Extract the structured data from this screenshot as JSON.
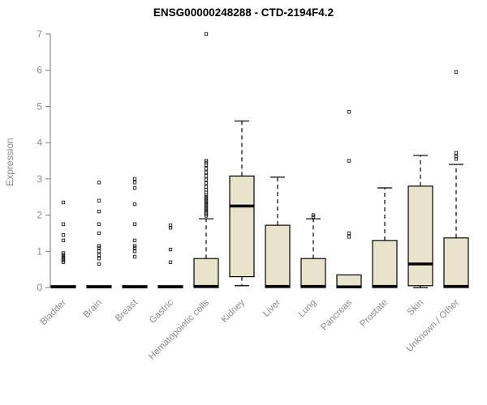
{
  "chart_data": {
    "type": "boxplot",
    "title": "ENSG00000248288 - CTD-2194F4.2",
    "ylabel": "Expression",
    "ylim": [
      0,
      7
    ],
    "yticks": [
      0,
      1,
      2,
      3,
      4,
      5,
      6,
      7
    ],
    "grid": false,
    "legend": "none",
    "colors": {
      "box_fill": "#eae3cb",
      "box_stroke": "#000000",
      "median": "#000000",
      "whisker": "#000000",
      "outlier": "#1a1a1a",
      "axis": "#7a7a7a",
      "tick_label": "#8a8a8a",
      "category_label": "#8a8a8a",
      "title": "#000000"
    },
    "categories": [
      "Bladder",
      "Brain",
      "Breast",
      "Gastric",
      "Hematopoietic cells",
      "Kidney",
      "Liver",
      "Lung",
      "Pancreas",
      "Prostate",
      "Skin",
      "Unknown / Other"
    ],
    "series": [
      {
        "category": "Bladder",
        "whisker_low": 0,
        "q1": 0,
        "median": 0.02,
        "q3": 0.05,
        "whisker_high": 0.05,
        "outliers": [
          0.7,
          0.75,
          0.8,
          0.85,
          0.9,
          0.95,
          1.3,
          1.45,
          1.75,
          2.35
        ]
      },
      {
        "category": "Brain",
        "whisker_low": 0,
        "q1": 0,
        "median": 0.02,
        "q3": 0.05,
        "whisker_high": 0.05,
        "outliers": [
          0.65,
          0.8,
          0.9,
          1.0,
          1.1,
          1.15,
          1.5,
          1.75,
          2.1,
          2.4,
          2.9
        ]
      },
      {
        "category": "Breast",
        "whisker_low": 0,
        "q1": 0,
        "median": 0.02,
        "q3": 0.05,
        "whisker_high": 0.05,
        "outliers": [
          0.85,
          1.0,
          1.1,
          1.15,
          1.3,
          1.75,
          2.3,
          2.75,
          2.9,
          3.0
        ]
      },
      {
        "category": "Gastric",
        "whisker_low": 0,
        "q1": 0,
        "median": 0.02,
        "q3": 0.05,
        "whisker_high": 0.05,
        "outliers": [
          0.7,
          1.05,
          1.65,
          1.72
        ]
      },
      {
        "category": "Hematopoietic cells",
        "whisker_low": 0,
        "q1": 0,
        "median": 0.03,
        "q3": 0.8,
        "whisker_high": 1.9,
        "outliers": [
          1.98,
          2.02,
          2.06,
          2.1,
          2.15,
          2.2,
          2.25,
          2.3,
          2.35,
          2.4,
          2.45,
          2.5,
          2.55,
          2.62,
          2.7,
          2.78,
          2.88,
          2.98,
          3.08,
          3.18,
          3.28,
          3.38,
          3.45,
          3.5,
          7.0
        ]
      },
      {
        "category": "Kidney",
        "whisker_low": 0.05,
        "q1": 0.3,
        "median": 2.25,
        "q3": 3.08,
        "whisker_high": 4.6,
        "outliers": []
      },
      {
        "category": "Liver",
        "whisker_low": 0,
        "q1": 0,
        "median": 0.03,
        "q3": 1.72,
        "whisker_high": 3.05,
        "outliers": []
      },
      {
        "category": "Lung",
        "whisker_low": 0,
        "q1": 0,
        "median": 0.03,
        "q3": 0.8,
        "whisker_high": 1.9,
        "outliers": [
          1.95,
          2.0
        ]
      },
      {
        "category": "Pancreas",
        "whisker_low": 0,
        "q1": 0,
        "median": 0.02,
        "q3": 0.35,
        "whisker_high": 0.35,
        "outliers": [
          1.4,
          1.5,
          3.5,
          4.85
        ]
      },
      {
        "category": "Prostate",
        "whisker_low": 0,
        "q1": 0,
        "median": 0.03,
        "q3": 1.3,
        "whisker_high": 2.75,
        "outliers": []
      },
      {
        "category": "Skin",
        "whisker_low": 0,
        "q1": 0.05,
        "median": 0.65,
        "q3": 2.8,
        "whisker_high": 3.65,
        "outliers": []
      },
      {
        "category": "Unknown / Other",
        "whisker_low": 0,
        "q1": 0,
        "median": 0.03,
        "q3": 1.37,
        "whisker_high": 3.4,
        "outliers": [
          3.55,
          3.62,
          3.72,
          5.95
        ]
      }
    ]
  }
}
